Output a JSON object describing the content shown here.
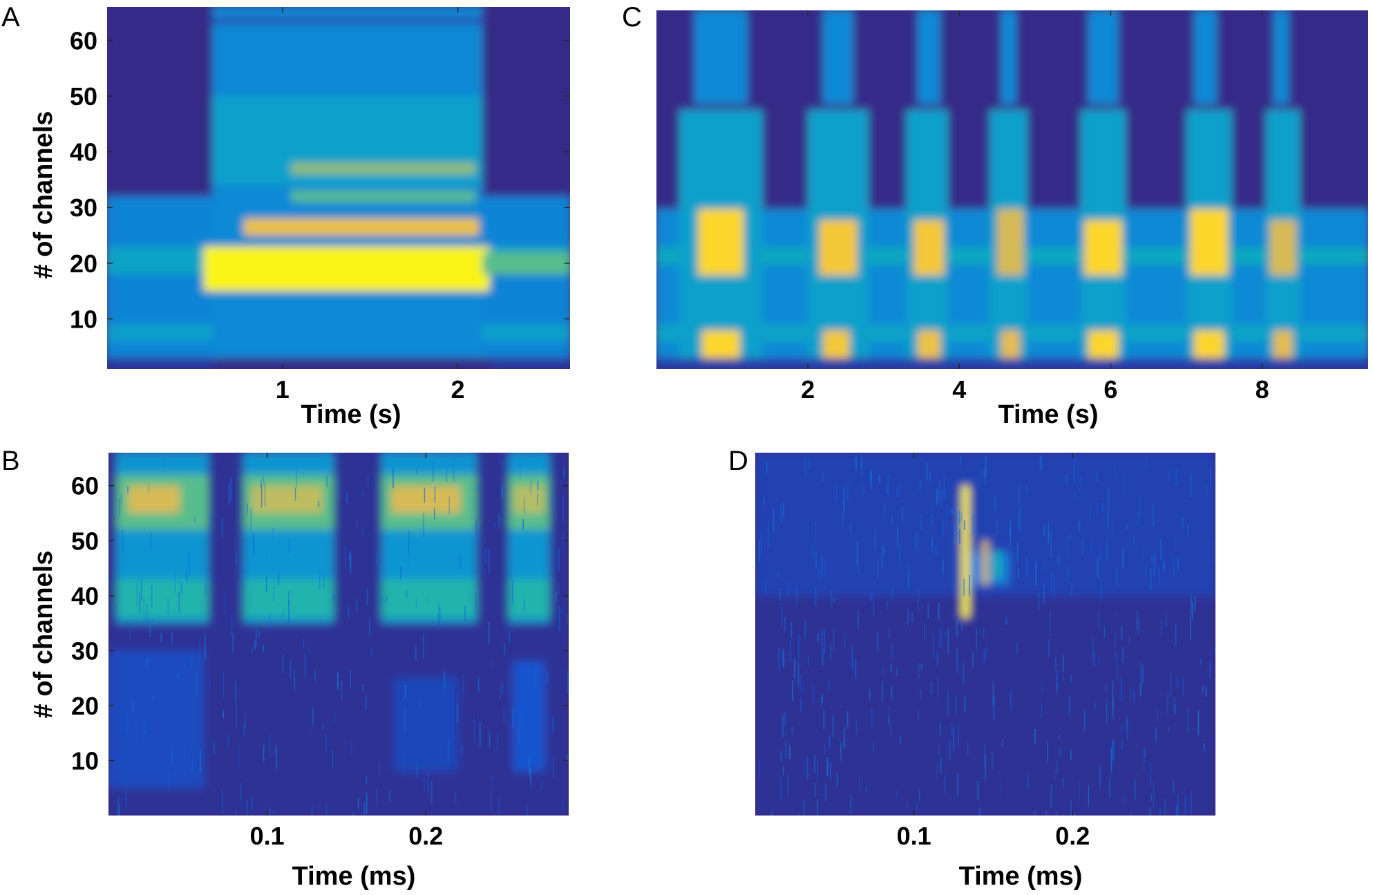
{
  "chart_data": [
    {
      "panel": "A",
      "type": "heatmap",
      "colormap": "parula",
      "xlabel": "Time (s)",
      "ylabel": "# of channels",
      "xlim": [
        0.0,
        2.64
      ],
      "ylim": [
        1,
        66
      ],
      "xticks": [
        1,
        2
      ],
      "yticks": [
        10,
        20,
        30,
        40,
        50,
        60
      ],
      "regions": [
        {
          "x": [
            0.0,
            2.64
          ],
          "y": [
            1,
            66
          ],
          "v": 0.0
        },
        {
          "x": [
            0.0,
            2.64
          ],
          "y": [
            3,
            32
          ],
          "v": 0.28
        },
        {
          "x": [
            0.0,
            2.64
          ],
          "y": [
            18,
            23
          ],
          "v": 0.42
        },
        {
          "x": [
            0.0,
            2.64
          ],
          "y": [
            6,
            9
          ],
          "v": 0.4
        },
        {
          "x": [
            0.6,
            2.14
          ],
          "y": [
            3,
            66
          ],
          "v": 0.3
        },
        {
          "x": [
            0.6,
            2.14
          ],
          "y": [
            34,
            50
          ],
          "v": 0.4
        },
        {
          "x": [
            0.6,
            2.14
          ],
          "y": [
            63,
            64
          ],
          "v": 0.05
        },
        {
          "x": [
            1.05,
            2.1
          ],
          "y": [
            36,
            38
          ],
          "v": 0.72
        },
        {
          "x": [
            1.05,
            2.1
          ],
          "y": [
            31,
            33
          ],
          "v": 0.62
        },
        {
          "x": [
            0.78,
            2.12
          ],
          "y": [
            25,
            28
          ],
          "v": 0.9
        },
        {
          "x": [
            0.55,
            2.18
          ],
          "y": [
            15,
            23
          ],
          "v": 0.99
        },
        {
          "x": [
            2.14,
            2.64
          ],
          "y": [
            18,
            22
          ],
          "v": 0.62
        },
        {
          "x": [
            0.0,
            0.6
          ],
          "y": [
            1,
            3
          ],
          "v": 0.03
        },
        {
          "x": [
            2.2,
            2.64
          ],
          "y": [
            1,
            3
          ],
          "v": 0.03
        }
      ]
    },
    {
      "panel": "C",
      "type": "heatmap",
      "colormap": "parula",
      "xlabel": "Time (s)",
      "ylabel": "",
      "xlim": [
        0.0,
        9.4
      ],
      "ylim": [
        1,
        66
      ],
      "xticks": [
        2,
        4,
        6,
        8
      ],
      "yticks": [],
      "regions": [
        {
          "x": [
            0.0,
            9.4
          ],
          "y": [
            1,
            66
          ],
          "v": 0.0
        },
        {
          "x": [
            0.0,
            9.4
          ],
          "y": [
            3,
            30
          ],
          "v": 0.3
        },
        {
          "x": [
            0.0,
            9.4
          ],
          "y": [
            20,
            23
          ],
          "v": 0.45
        },
        {
          "x": [
            0.0,
            9.4
          ],
          "y": [
            6,
            9
          ],
          "v": 0.42
        },
        {
          "x": [
            0.3,
            1.4
          ],
          "y": [
            3,
            48
          ],
          "v": 0.4
        },
        {
          "x": [
            0.5,
            1.2
          ],
          "y": [
            49,
            66
          ],
          "v": 0.3
        },
        {
          "x": [
            0.55,
            1.15
          ],
          "y": [
            18,
            30
          ],
          "v": 0.95
        },
        {
          "x": [
            0.6,
            1.1
          ],
          "y": [
            3,
            8
          ],
          "v": 0.95
        },
        {
          "x": [
            2.0,
            2.8
          ],
          "y": [
            3,
            48
          ],
          "v": 0.4
        },
        {
          "x": [
            2.2,
            2.6
          ],
          "y": [
            49,
            66
          ],
          "v": 0.3
        },
        {
          "x": [
            2.15,
            2.65
          ],
          "y": [
            18,
            28
          ],
          "v": 0.92
        },
        {
          "x": [
            2.2,
            2.55
          ],
          "y": [
            3,
            8
          ],
          "v": 0.92
        },
        {
          "x": [
            3.3,
            3.85
          ],
          "y": [
            3,
            48
          ],
          "v": 0.4
        },
        {
          "x": [
            3.45,
            3.75
          ],
          "y": [
            49,
            66
          ],
          "v": 0.3
        },
        {
          "x": [
            3.4,
            3.8
          ],
          "y": [
            18,
            28
          ],
          "v": 0.92
        },
        {
          "x": [
            3.45,
            3.75
          ],
          "y": [
            3,
            8
          ],
          "v": 0.9
        },
        {
          "x": [
            4.4,
            4.9
          ],
          "y": [
            3,
            48
          ],
          "v": 0.4
        },
        {
          "x": [
            4.55,
            4.75
          ],
          "y": [
            49,
            66
          ],
          "v": 0.3
        },
        {
          "x": [
            4.5,
            4.85
          ],
          "y": [
            18,
            30
          ],
          "v": 0.85
        },
        {
          "x": [
            4.55,
            4.8
          ],
          "y": [
            3,
            8
          ],
          "v": 0.88
        },
        {
          "x": [
            5.6,
            6.2
          ],
          "y": [
            3,
            48
          ],
          "v": 0.4
        },
        {
          "x": [
            5.7,
            6.1
          ],
          "y": [
            49,
            66
          ],
          "v": 0.3
        },
        {
          "x": [
            5.65,
            6.15
          ],
          "y": [
            18,
            28
          ],
          "v": 0.95
        },
        {
          "x": [
            5.7,
            6.1
          ],
          "y": [
            3,
            8
          ],
          "v": 0.95
        },
        {
          "x": [
            7.0,
            7.6
          ],
          "y": [
            3,
            48
          ],
          "v": 0.4
        },
        {
          "x": [
            7.1,
            7.4
          ],
          "y": [
            49,
            66
          ],
          "v": 0.3
        },
        {
          "x": [
            7.05,
            7.55
          ],
          "y": [
            18,
            30
          ],
          "v": 0.95
        },
        {
          "x": [
            7.1,
            7.5
          ],
          "y": [
            3,
            8
          ],
          "v": 0.95
        },
        {
          "x": [
            8.05,
            8.5
          ],
          "y": [
            3,
            48
          ],
          "v": 0.4
        },
        {
          "x": [
            8.15,
            8.35
          ],
          "y": [
            49,
            66
          ],
          "v": 0.3
        },
        {
          "x": [
            8.1,
            8.45
          ],
          "y": [
            18,
            28
          ],
          "v": 0.85
        },
        {
          "x": [
            8.15,
            8.4
          ],
          "y": [
            3,
            8
          ],
          "v": 0.88
        },
        {
          "x": [
            0.0,
            9.4
          ],
          "y": [
            1,
            3
          ],
          "v": 0.05
        }
      ]
    },
    {
      "panel": "B",
      "type": "heatmap",
      "colormap": "parula",
      "xlabel": "Time (ms)",
      "ylabel": "# of channels",
      "xlim": [
        0.0,
        0.29
      ],
      "ylim": [
        0,
        66
      ],
      "xticks": [
        0.1,
        0.2
      ],
      "yticks": [
        10,
        20,
        30,
        40,
        50,
        60
      ],
      "regions": [
        {
          "x": [
            0.0,
            0.29
          ],
          "y": [
            0,
            66
          ],
          "v": 0.02
        },
        {
          "x": [
            0.0,
            0.06
          ],
          "y": [
            5,
            30
          ],
          "v": 0.08
        },
        {
          "x": [
            0.18,
            0.22
          ],
          "y": [
            8,
            25
          ],
          "v": 0.07
        },
        {
          "x": [
            0.255,
            0.275
          ],
          "y": [
            8,
            28
          ],
          "v": 0.1
        },
        {
          "x": [
            0.005,
            0.063
          ],
          "y": [
            35,
            66
          ],
          "v": 0.35
        },
        {
          "x": [
            0.005,
            0.063
          ],
          "y": [
            36,
            43
          ],
          "v": 0.52
        },
        {
          "x": [
            0.005,
            0.063
          ],
          "y": [
            52,
            62
          ],
          "v": 0.62
        },
        {
          "x": [
            0.012,
            0.045
          ],
          "y": [
            55,
            60
          ],
          "v": 0.85
        },
        {
          "x": [
            0.085,
            0.142
          ],
          "y": [
            35,
            66
          ],
          "v": 0.35
        },
        {
          "x": [
            0.085,
            0.142
          ],
          "y": [
            36,
            43
          ],
          "v": 0.52
        },
        {
          "x": [
            0.085,
            0.142
          ],
          "y": [
            52,
            62
          ],
          "v": 0.62
        },
        {
          "x": [
            0.09,
            0.135
          ],
          "y": [
            55,
            60
          ],
          "v": 0.8
        },
        {
          "x": [
            0.172,
            0.232
          ],
          "y": [
            35,
            66
          ],
          "v": 0.35
        },
        {
          "x": [
            0.172,
            0.232
          ],
          "y": [
            36,
            43
          ],
          "v": 0.52
        },
        {
          "x": [
            0.172,
            0.232
          ],
          "y": [
            52,
            62
          ],
          "v": 0.62
        },
        {
          "x": [
            0.178,
            0.222
          ],
          "y": [
            55,
            60
          ],
          "v": 0.85
        },
        {
          "x": [
            0.252,
            0.278
          ],
          "y": [
            35,
            66
          ],
          "v": 0.35
        },
        {
          "x": [
            0.252,
            0.278
          ],
          "y": [
            36,
            43
          ],
          "v": 0.52
        },
        {
          "x": [
            0.252,
            0.278
          ],
          "y": [
            52,
            62
          ],
          "v": 0.62
        },
        {
          "x": [
            0.255,
            0.275
          ],
          "y": [
            55,
            60
          ],
          "v": 0.78
        }
      ]
    },
    {
      "panel": "D",
      "type": "heatmap",
      "colormap": "parula",
      "xlabel": "Time (ms)",
      "ylabel": "",
      "xlim": [
        0.0,
        0.29
      ],
      "ylim": [
        0,
        66
      ],
      "xticks": [
        0.1,
        0.2
      ],
      "yticks": [],
      "regions": [
        {
          "x": [
            0.0,
            0.29
          ],
          "y": [
            0,
            66
          ],
          "v": 0.02
        },
        {
          "x": [
            0.0,
            0.29
          ],
          "y": [
            40,
            66
          ],
          "v": 0.06
        },
        {
          "x": [
            0.13,
            0.16
          ],
          "y": [
            42,
            48
          ],
          "v": 0.25
        },
        {
          "x": [
            0.13,
            0.135
          ],
          "y": [
            36,
            60
          ],
          "v": 0.98
        },
        {
          "x": [
            0.143,
            0.147
          ],
          "y": [
            42,
            50
          ],
          "v": 0.85
        },
        {
          "x": [
            0.15,
            0.155
          ],
          "y": [
            43,
            48
          ],
          "v": 0.5
        }
      ]
    }
  ]
}
